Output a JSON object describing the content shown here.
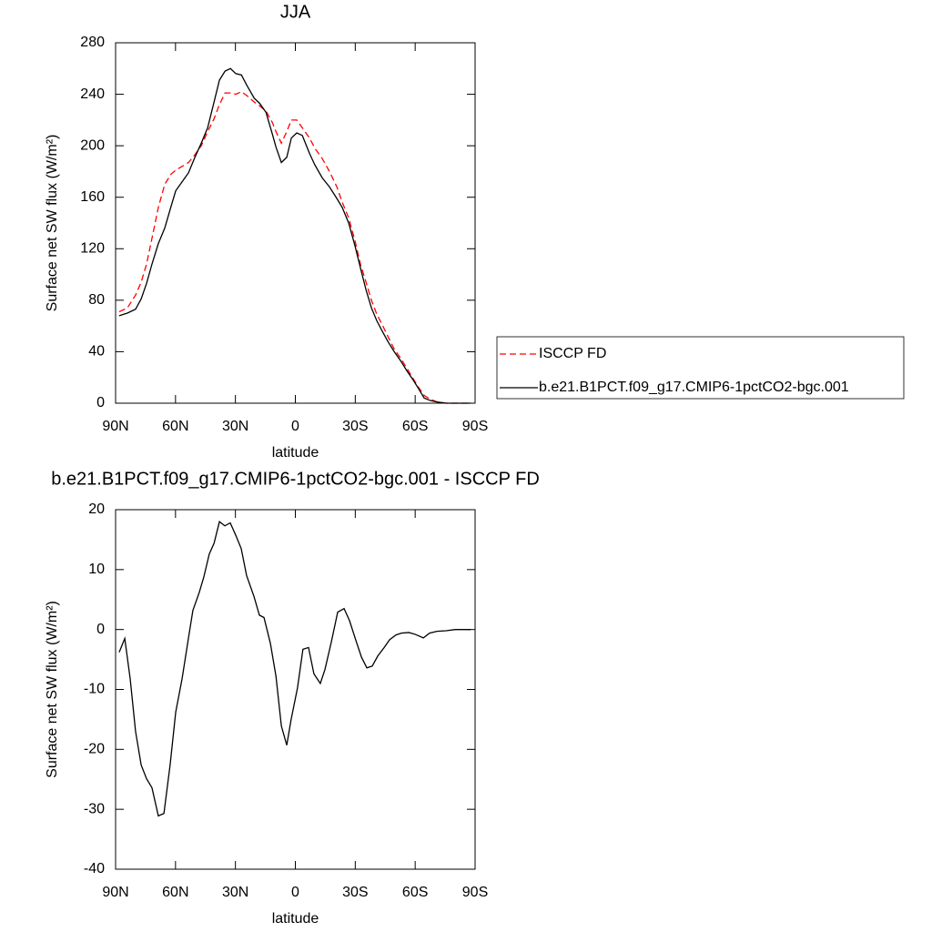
{
  "chart_data": [
    {
      "type": "line",
      "title": "JJA",
      "xlabel": "latitude",
      "ylabel": "Surface net SW flux (W/m²)",
      "x": [
        88.2,
        84.1,
        80,
        77.2,
        74.5,
        71.8,
        68.6,
        65.4,
        62.2,
        59.9,
        56.7,
        53.5,
        50.3,
        47.1,
        43.9,
        40.7,
        38,
        35.2,
        32.5,
        29.8,
        27,
        24.3,
        20.6,
        17.9,
        14.7,
        11.5,
        9.7,
        7,
        4.3,
        2,
        -0.7,
        -3.5,
        -7.1,
        -9.8,
        -13.5,
        -17.1,
        -20.8,
        -23.5,
        -26.7,
        -29.9,
        -32.6,
        -35.4,
        -38.1,
        -40.8,
        -43.5,
        -46.3,
        -49.5,
        -52.7,
        -55.9,
        -59,
        -61.8,
        -64.5,
        -67.7,
        -70.9,
        -75.5,
        -80,
        -84.6,
        -87.8
      ],
      "series": [
        {
          "name": "ISCCP FD",
          "color": "#ff0000",
          "line_style": "dashed",
          "values": [
            71,
            74,
            84,
            94,
            108,
            128,
            152,
            170,
            178,
            181,
            184,
            187,
            193,
            200,
            211,
            221,
            232,
            241,
            241,
            240,
            242,
            239,
            234,
            231,
            227,
            218,
            211,
            202,
            211,
            220,
            220,
            214,
            206,
            198,
            190,
            180,
            168,
            156,
            144,
            126,
            108,
            94,
            80,
            69,
            61,
            52,
            42,
            35,
            27,
            19,
            12,
            6,
            3,
            1,
            0,
            0,
            0,
            0
          ]
        },
        {
          "name": "b.e21.B1PCT.f09_g17.CMIP6-1pctCO2-bgc.001",
          "color": "#000000",
          "line_style": "solid",
          "values": [
            68,
            70,
            73,
            81,
            93,
            108,
            124,
            136,
            153,
            165,
            172,
            179,
            191,
            202,
            214,
            234,
            251,
            258,
            260,
            256,
            255,
            247,
            237,
            233,
            226,
            209,
            199,
            187,
            191,
            206,
            210,
            208,
            194,
            185,
            175,
            168,
            159,
            152,
            140,
            122,
            105,
            88,
            74,
            64,
            56,
            48,
            40,
            33,
            25,
            18,
            11,
            4,
            2,
            1,
            0,
            0,
            0,
            0
          ]
        }
      ],
      "xlim": [
        90,
        -90
      ],
      "xticks": [
        {
          "value": 90,
          "label": "90N"
        },
        {
          "value": 60,
          "label": "60N"
        },
        {
          "value": 30,
          "label": "30N"
        },
        0,
        {
          "value": -30,
          "label": "30S"
        },
        {
          "value": -60,
          "label": "60S"
        },
        {
          "value": -90,
          "label": "90S"
        }
      ],
      "ylim": [
        0,
        280
      ],
      "yticks": [
        0,
        40,
        80,
        120,
        160,
        200,
        240,
        280
      ],
      "legend": "right"
    },
    {
      "type": "line",
      "title": "b.e21.B1PCT.f09_g17.CMIP6-1pctCO2-bgc.001 - ISCCP FD",
      "xlabel": "latitude",
      "ylabel": "Surface net SW flux (W/m²)",
      "x": [
        88.2,
        85.4,
        82.7,
        80,
        77.2,
        74.5,
        71.8,
        68.6,
        65.8,
        62.7,
        59.9,
        56.7,
        53.5,
        51.3,
        48.1,
        45.8,
        43.1,
        40.7,
        38,
        35.3,
        32.6,
        29.8,
        27.1,
        24.4,
        20.7,
        18,
        15.7,
        12.5,
        9.7,
        7,
        4.3,
        2.1,
        -1.1,
        -3.8,
        -6.6,
        -9.3,
        -12.5,
        -14.8,
        -18,
        -21.2,
        -24.4,
        -27.1,
        -30.3,
        -33.1,
        -35.8,
        -38.5,
        -41.3,
        -44.5,
        -47.2,
        -50.4,
        -53.1,
        -56.8,
        -60,
        -64.1,
        -67.2,
        -70.9,
        -75.5,
        -80,
        -87.8
      ],
      "values": [
        -3.8,
        -1.5,
        -8.2,
        -17,
        -22.6,
        -24.9,
        -26.4,
        -31.1,
        -30.7,
        -22.6,
        -13.8,
        -8.2,
        -1.4,
        3.2,
        6.2,
        8.8,
        12.6,
        14.4,
        18,
        17.3,
        17.8,
        15.7,
        13.5,
        9,
        5.5,
        2.4,
        2,
        -2.3,
        -7.8,
        -16.1,
        -19.3,
        -15,
        -9.7,
        -3.3,
        -3,
        -7.4,
        -9,
        -6.7,
        -2.1,
        2.9,
        3.5,
        1.5,
        -1.8,
        -4.6,
        -6.4,
        -6.1,
        -4.4,
        -3,
        -1.7,
        -0.9,
        -0.6,
        -0.5,
        -0.8,
        -1.4,
        -0.6,
        -0.3,
        -0.2,
        0,
        0
      ],
      "color": "#000000",
      "xlim": [
        90,
        -90
      ],
      "xticks": [
        {
          "value": 90,
          "label": "90N"
        },
        {
          "value": 60,
          "label": "60N"
        },
        {
          "value": 30,
          "label": "30N"
        },
        0,
        {
          "value": -30,
          "label": "30S"
        },
        {
          "value": -60,
          "label": "60S"
        },
        {
          "value": -90,
          "label": "90S"
        }
      ],
      "ylim": [
        -40,
        20
      ],
      "yticks": [
        -40,
        -30,
        -20,
        -10,
        0,
        10,
        20
      ]
    }
  ]
}
